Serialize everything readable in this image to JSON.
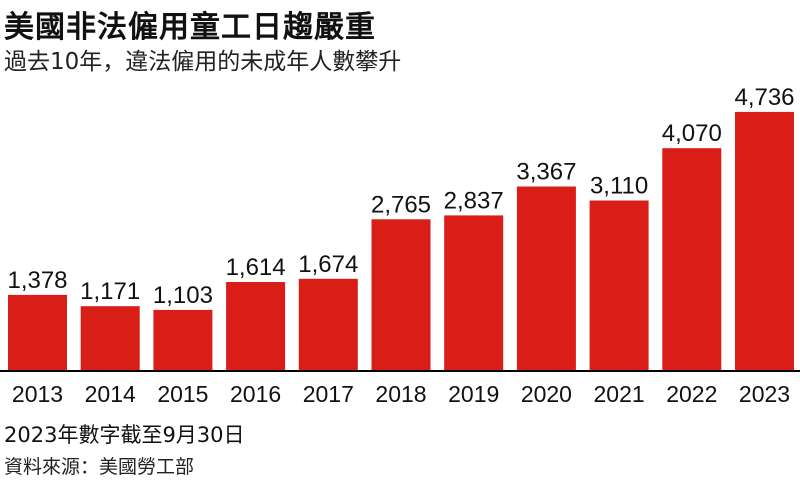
{
  "title": "美國非法僱用童工日趨嚴重",
  "subtitle": "過去10年，違法僱用的未成年人數攀升",
  "note": "2023年數字截至9月30日",
  "source": "資料來源：美國勞工部",
  "colors": {
    "bar": "#d81e16",
    "axis": "#000000",
    "text": "#111111"
  },
  "chart_data": {
    "type": "bar",
    "title": "美國非法僱用童工日趨嚴重",
    "subtitle": "過去10年，違法僱用的未成年人數攀升",
    "categories": [
      "2013",
      "2014",
      "2015",
      "2016",
      "2017",
      "2018",
      "2019",
      "2020",
      "2021",
      "2022",
      "2023"
    ],
    "values": [
      1378,
      1171,
      1103,
      1614,
      1674,
      2765,
      2837,
      3367,
      3110,
      4070,
      4736
    ],
    "value_labels": [
      "1,378",
      "1,171",
      "1,103",
      "1,614",
      "1,674",
      "2,765",
      "2,837",
      "3,367",
      "3,110",
      "4,070",
      "4,736"
    ],
    "xlabel": "",
    "ylabel": "",
    "ylim": [
      0,
      5000
    ],
    "grid": false,
    "legend": "none"
  }
}
